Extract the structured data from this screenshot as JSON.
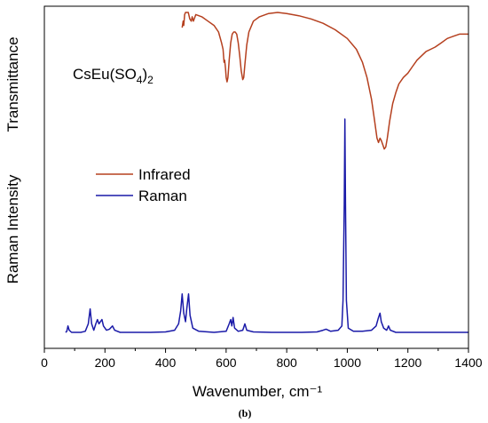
{
  "chart_data": {
    "type": "line",
    "xlabel": "Wavenumber, cm⁻¹",
    "ylabel_top": "Transmittance",
    "ylabel_bottom": "Raman Intensity",
    "annotation": {
      "base": "CsEu(SO",
      "sub1": "4",
      "close": ")",
      "sub2": "2"
    },
    "caption": "(b)",
    "xlim": [
      0,
      1400
    ],
    "x_ticks": [
      0,
      200,
      400,
      600,
      800,
      1000,
      1200,
      1400
    ],
    "y_ticks_shown": false,
    "legend_position": "middle-left",
    "series": [
      {
        "name": "Infrared",
        "color": "#b5401f",
        "x_start": 455,
        "points": [
          [
            455,
            0.93
          ],
          [
            458,
            0.96
          ],
          [
            460,
            0.94
          ],
          [
            463,
            0.99
          ],
          [
            466,
            1.0
          ],
          [
            470,
            1.0
          ],
          [
            475,
            1.0
          ],
          [
            480,
            0.97
          ],
          [
            485,
            0.96
          ],
          [
            488,
            0.98
          ],
          [
            492,
            0.96
          ],
          [
            500,
            0.99
          ],
          [
            520,
            0.98
          ],
          [
            540,
            0.96
          ],
          [
            560,
            0.94
          ],
          [
            575,
            0.91
          ],
          [
            585,
            0.86
          ],
          [
            590,
            0.83
          ],
          [
            593,
            0.77
          ],
          [
            595,
            0.78
          ],
          [
            598,
            0.74
          ],
          [
            600,
            0.7
          ],
          [
            603,
            0.68
          ],
          [
            606,
            0.7
          ],
          [
            610,
            0.78
          ],
          [
            615,
            0.86
          ],
          [
            620,
            0.9
          ],
          [
            625,
            0.91
          ],
          [
            630,
            0.91
          ],
          [
            635,
            0.9
          ],
          [
            640,
            0.86
          ],
          [
            645,
            0.8
          ],
          [
            650,
            0.73
          ],
          [
            655,
            0.69
          ],
          [
            658,
            0.7
          ],
          [
            662,
            0.76
          ],
          [
            668,
            0.85
          ],
          [
            675,
            0.91
          ],
          [
            690,
            0.96
          ],
          [
            710,
            0.98
          ],
          [
            740,
            0.995
          ],
          [
            770,
            1.0
          ],
          [
            800,
            0.995
          ],
          [
            840,
            0.985
          ],
          [
            880,
            0.97
          ],
          [
            920,
            0.95
          ],
          [
            960,
            0.92
          ],
          [
            1000,
            0.88
          ],
          [
            1030,
            0.83
          ],
          [
            1050,
            0.77
          ],
          [
            1065,
            0.7
          ],
          [
            1080,
            0.6
          ],
          [
            1090,
            0.5
          ],
          [
            1098,
            0.42
          ],
          [
            1103,
            0.4
          ],
          [
            1108,
            0.42
          ],
          [
            1112,
            0.41
          ],
          [
            1117,
            0.39
          ],
          [
            1122,
            0.37
          ],
          [
            1127,
            0.38
          ],
          [
            1132,
            0.42
          ],
          [
            1140,
            0.5
          ],
          [
            1150,
            0.58
          ],
          [
            1160,
            0.63
          ],
          [
            1170,
            0.67
          ],
          [
            1185,
            0.7
          ],
          [
            1200,
            0.72
          ],
          [
            1215,
            0.75
          ],
          [
            1230,
            0.78
          ],
          [
            1245,
            0.8
          ],
          [
            1260,
            0.82
          ],
          [
            1275,
            0.83
          ],
          [
            1290,
            0.84
          ],
          [
            1310,
            0.86
          ],
          [
            1330,
            0.88
          ],
          [
            1350,
            0.89
          ],
          [
            1370,
            0.9
          ],
          [
            1385,
            0.9
          ],
          [
            1400,
            0.9
          ]
        ]
      },
      {
        "name": "Raman",
        "color": "#1a1aa8",
        "x_start": 70,
        "points": [
          [
            70,
            0.0
          ],
          [
            74,
            0.005
          ],
          [
            78,
            0.03
          ],
          [
            82,
            0.01
          ],
          [
            90,
            0.0
          ],
          [
            120,
            0.0
          ],
          [
            135,
            0.005
          ],
          [
            145,
            0.04
          ],
          [
            151,
            0.11
          ],
          [
            156,
            0.04
          ],
          [
            163,
            0.01
          ],
          [
            170,
            0.04
          ],
          [
            175,
            0.06
          ],
          [
            180,
            0.04
          ],
          [
            185,
            0.05
          ],
          [
            190,
            0.06
          ],
          [
            195,
            0.03
          ],
          [
            205,
            0.01
          ],
          [
            215,
            0.015
          ],
          [
            225,
            0.03
          ],
          [
            232,
            0.01
          ],
          [
            250,
            0.0
          ],
          [
            300,
            0.0
          ],
          [
            350,
            0.0
          ],
          [
            400,
            0.002
          ],
          [
            430,
            0.01
          ],
          [
            443,
            0.04
          ],
          [
            450,
            0.1
          ],
          [
            455,
            0.18
          ],
          [
            460,
            0.09
          ],
          [
            466,
            0.05
          ],
          [
            470,
            0.11
          ],
          [
            476,
            0.18
          ],
          [
            481,
            0.08
          ],
          [
            490,
            0.02
          ],
          [
            510,
            0.005
          ],
          [
            560,
            0.0
          ],
          [
            600,
            0.005
          ],
          [
            610,
            0.04
          ],
          [
            615,
            0.06
          ],
          [
            619,
            0.03
          ],
          [
            623,
            0.07
          ],
          [
            628,
            0.02
          ],
          [
            640,
            0.005
          ],
          [
            655,
            0.01
          ],
          [
            662,
            0.04
          ],
          [
            668,
            0.01
          ],
          [
            690,
            0.002
          ],
          [
            750,
            0.0
          ],
          [
            850,
            0.0
          ],
          [
            900,
            0.002
          ],
          [
            920,
            0.01
          ],
          [
            930,
            0.015
          ],
          [
            945,
            0.005
          ],
          [
            970,
            0.01
          ],
          [
            982,
            0.03
          ],
          [
            986,
            0.15
          ],
          [
            990,
            0.6
          ],
          [
            992,
            1.0
          ],
          [
            994,
            0.6
          ],
          [
            997,
            0.15
          ],
          [
            1003,
            0.02
          ],
          [
            1020,
            0.005
          ],
          [
            1050,
            0.005
          ],
          [
            1080,
            0.01
          ],
          [
            1095,
            0.03
          ],
          [
            1103,
            0.07
          ],
          [
            1108,
            0.09
          ],
          [
            1112,
            0.05
          ],
          [
            1120,
            0.02
          ],
          [
            1130,
            0.01
          ],
          [
            1136,
            0.03
          ],
          [
            1142,
            0.01
          ],
          [
            1160,
            0.0
          ],
          [
            1200,
            0.0
          ],
          [
            1300,
            0.0
          ],
          [
            1400,
            0.0
          ]
        ]
      }
    ]
  }
}
